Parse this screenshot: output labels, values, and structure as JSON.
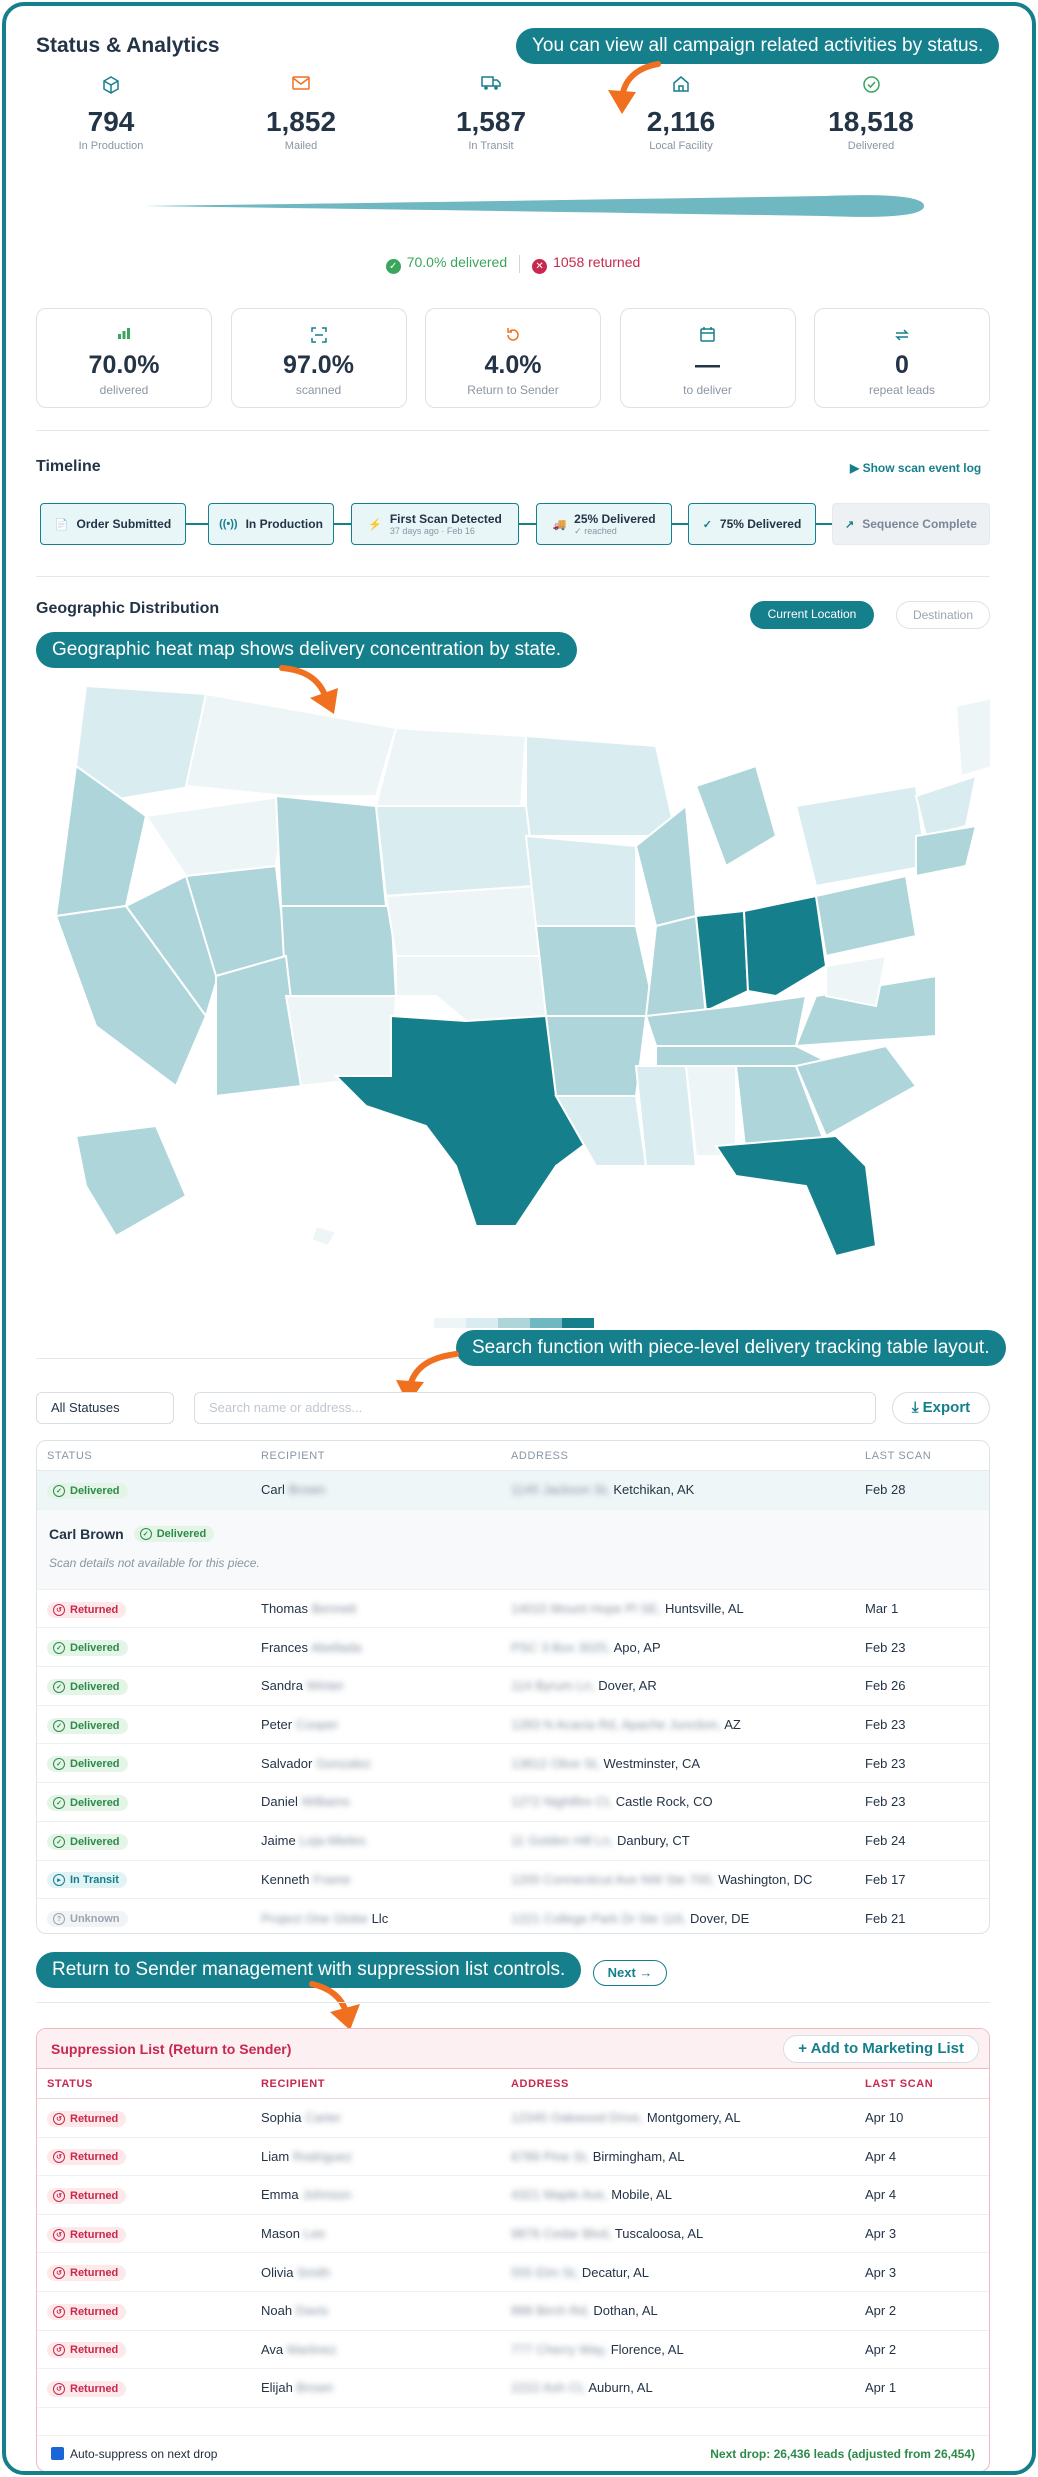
{
  "header": {
    "title": "Status & Analytics"
  },
  "callouts": {
    "status": "You can view all campaign related activities by status.",
    "geo": "Geographic heat map shows delivery concentration by state.",
    "search": "Search function with piece-level delivery tracking table layout.",
    "rts": "Return to Sender management with suppression list controls."
  },
  "stats": [
    {
      "value": "794",
      "label": "In Production",
      "icon": "box-icon"
    },
    {
      "value": "1,852",
      "label": "Mailed",
      "icon": "mail-icon"
    },
    {
      "value": "1,587",
      "label": "In Transit",
      "icon": "truck-icon"
    },
    {
      "value": "2,116",
      "label": "Local Facility",
      "icon": "home-icon"
    },
    {
      "value": "18,518",
      "label": "Delivered",
      "icon": "check-circle-icon"
    }
  ],
  "summary": {
    "delivered": "70.0% delivered",
    "returned": "1058 returned"
  },
  "cards": [
    {
      "value": "70.0%",
      "label": "delivered"
    },
    {
      "value": "97.0%",
      "label": "scanned"
    },
    {
      "value": "4.0%",
      "label": "Return to Sender"
    },
    {
      "value": "—",
      "label": "to deliver"
    },
    {
      "value": "0",
      "label": "repeat leads"
    }
  ],
  "timeline": {
    "title": "Timeline",
    "link": "▶ Show scan event log",
    "steps": [
      {
        "label": "Order Submitted",
        "sub": ""
      },
      {
        "label": "In Production",
        "sub": ""
      },
      {
        "label": "First Scan Detected",
        "sub": "37 days ago · Feb 16"
      },
      {
        "label": "25% Delivered",
        "sub": "✓ reached"
      },
      {
        "label": "75% Delivered",
        "sub": ""
      },
      {
        "label": "Sequence Complete",
        "sub": ""
      }
    ]
  },
  "geo": {
    "title": "Geographic Distribution",
    "btn_current": "Current Location",
    "btn_dest": "Destination"
  },
  "filters": {
    "status": "All Statuses",
    "search_placeholder": "Search name or address...",
    "export": "Export"
  },
  "table": {
    "headers": [
      "STATUS",
      "RECIPIENT",
      "ADDRESS",
      "LAST SCAN"
    ],
    "first_row": {
      "status": "Delivered",
      "first": "Carl",
      "last": "Brown",
      "addr_blur": "1145 Jackson St,",
      "addr": "Ketchikan, AK",
      "date": "Feb 28"
    },
    "detail": {
      "name": "Carl Brown",
      "status": "Delivered",
      "note": "Scan details not available for this piece."
    },
    "rows": [
      {
        "status": "Returned",
        "first": "Thomas",
        "last": "Bennett",
        "addr_blur": "14015 Mount Hope Pl SE,",
        "addr": "Huntsville, AL",
        "date": "Mar 1"
      },
      {
        "status": "Delivered",
        "first": "Frances",
        "last": "Abellada",
        "addr_blur": "PSC 3 Box 3025,",
        "addr": "Apo, AP",
        "date": "Feb 23"
      },
      {
        "status": "Delivered",
        "first": "Sandra",
        "last": "Winter",
        "addr_blur": "114 Byrum Ln,",
        "addr": "Dover, AR",
        "date": "Feb 26"
      },
      {
        "status": "Delivered",
        "first": "Peter",
        "last": "Cooper",
        "addr_blur": "1283 N Acacia Rd, Apache Junction,",
        "addr": "AZ",
        "date": "Feb 23"
      },
      {
        "status": "Delivered",
        "first": "Salvador",
        "last": "Gonzalez",
        "addr_blur": "13812 Olive St,",
        "addr": "Westminster, CA",
        "date": "Feb 23"
      },
      {
        "status": "Delivered",
        "first": "Daniel",
        "last": "Williams",
        "addr_blur": "1272 Nightfire Ct,",
        "addr": "Castle Rock, CO",
        "date": "Feb 23"
      },
      {
        "status": "Delivered",
        "first": "Jaime",
        "last": "Loja-Mieles",
        "addr_blur": "11 Golden Hill Ln,",
        "addr": "Danbury, CT",
        "date": "Feb 24"
      },
      {
        "status": "In Transit",
        "first": "Kenneth",
        "last": "Frame",
        "addr_blur": "1200 Connecticut Ave NW Ste 700,",
        "addr": "Washington, DC",
        "date": "Feb 17"
      },
      {
        "status": "Unknown",
        "first": "Llc",
        "last": "Project One Globe",
        "addr_blur": "1221 College Park Dr Ste 116,",
        "addr": "Dover, DE",
        "date": "Feb 21"
      }
    ]
  },
  "next_btn": "Next →",
  "suppression": {
    "title": "Suppression List (Return to Sender)",
    "add": "Add to Marketing List",
    "headers": [
      "STATUS",
      "RECIPIENT",
      "ADDRESS",
      "LAST SCAN"
    ],
    "rows": [
      {
        "first": "Sophia",
        "last": "Carter",
        "addr_blur": "12345 Oakwood Drive,",
        "addr": "Montgomery, AL",
        "date": "Apr 10"
      },
      {
        "first": "Liam",
        "last": "Rodriguez",
        "addr_blur": "6789 Pine St,",
        "addr": "Birmingham, AL",
        "date": "Apr 4"
      },
      {
        "first": "Emma",
        "last": "Johnson",
        "addr_blur": "4321 Maple Ave,",
        "addr": "Mobile, AL",
        "date": "Apr 4"
      },
      {
        "first": "Mason",
        "last": "Lee",
        "addr_blur": "9876 Cedar Blvd,",
        "addr": "Tuscaloosa, AL",
        "date": "Apr 3"
      },
      {
        "first": "Olivia",
        "last": "Smith",
        "addr_blur": "555 Elm St,",
        "addr": "Decatur, AL",
        "date": "Apr 3"
      },
      {
        "first": "Noah",
        "last": "Davis",
        "addr_blur": "888 Birch Rd,",
        "addr": "Dothan, AL",
        "date": "Apr 2"
      },
      {
        "first": "Ava",
        "last": "Martinez",
        "addr_blur": "777 Cherry Way,",
        "addr": "Florence, AL",
        "date": "Apr 2"
      },
      {
        "first": "Elijah",
        "last": "Brown",
        "addr_blur": "2222 Ash Ct,",
        "addr": "Auburn, AL",
        "date": "Apr 1"
      }
    ],
    "returned_label": "Returned",
    "auto": "Auto-suppress on next drop",
    "next_drop": "Next drop: 26,436 leads (adjusted from 26,454)"
  },
  "colors": {
    "accent": "#167f8c",
    "callout_arrow": "#f07020",
    "delivered": "#3aa55c",
    "returned": "#c8284d"
  }
}
